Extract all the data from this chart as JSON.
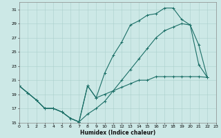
{
  "xlabel": "Humidex (Indice chaleur)",
  "xlim": [
    0,
    23
  ],
  "ylim": [
    15,
    32
  ],
  "xticks": [
    0,
    1,
    2,
    3,
    4,
    5,
    6,
    7,
    8,
    9,
    10,
    11,
    12,
    13,
    14,
    15,
    16,
    17,
    18,
    19,
    20,
    21,
    22,
    23
  ],
  "yticks": [
    15,
    17,
    19,
    21,
    23,
    25,
    27,
    29,
    31
  ],
  "bg_color": "#cce8e6",
  "grid_color": "#aacfcc",
  "line_color": "#1a6e66",
  "upper_x": [
    0,
    1,
    2,
    3,
    4,
    5,
    6,
    7,
    8,
    9,
    10,
    11,
    12,
    13,
    14,
    15,
    16,
    17,
    18,
    19,
    20,
    21,
    22
  ],
  "upper_y": [
    20.2,
    19.2,
    18.2,
    17.0,
    17.0,
    16.5,
    15.6,
    15.1,
    20.2,
    18.5,
    22.0,
    24.5,
    26.4,
    28.8,
    29.4,
    30.2,
    30.4,
    31.2,
    31.2,
    29.6,
    28.8,
    26.0,
    21.4
  ],
  "mid_x": [
    0,
    1,
    2,
    3,
    4,
    5,
    6,
    7,
    8,
    9,
    10,
    11,
    12,
    13,
    14,
    15,
    16,
    17,
    18,
    19,
    20,
    21,
    22
  ],
  "mid_y": [
    20.2,
    19.2,
    18.2,
    17.0,
    17.0,
    16.5,
    15.6,
    15.1,
    16.2,
    17.0,
    18.0,
    19.5,
    21.0,
    22.5,
    24.0,
    25.5,
    27.0,
    28.0,
    28.5,
    29.0,
    28.8,
    23.2,
    21.4
  ],
  "lower_x": [
    0,
    1,
    2,
    3,
    4,
    5,
    6,
    7,
    8,
    9,
    10,
    11,
    12,
    13,
    14,
    15,
    16,
    17,
    18,
    19,
    20,
    21,
    22
  ],
  "lower_y": [
    20.2,
    19.2,
    18.2,
    17.0,
    17.0,
    16.5,
    15.6,
    15.1,
    20.2,
    18.5,
    19.0,
    19.5,
    20.0,
    20.5,
    21.0,
    21.0,
    21.5,
    21.5,
    21.5,
    21.5,
    21.5,
    21.5,
    21.4
  ]
}
